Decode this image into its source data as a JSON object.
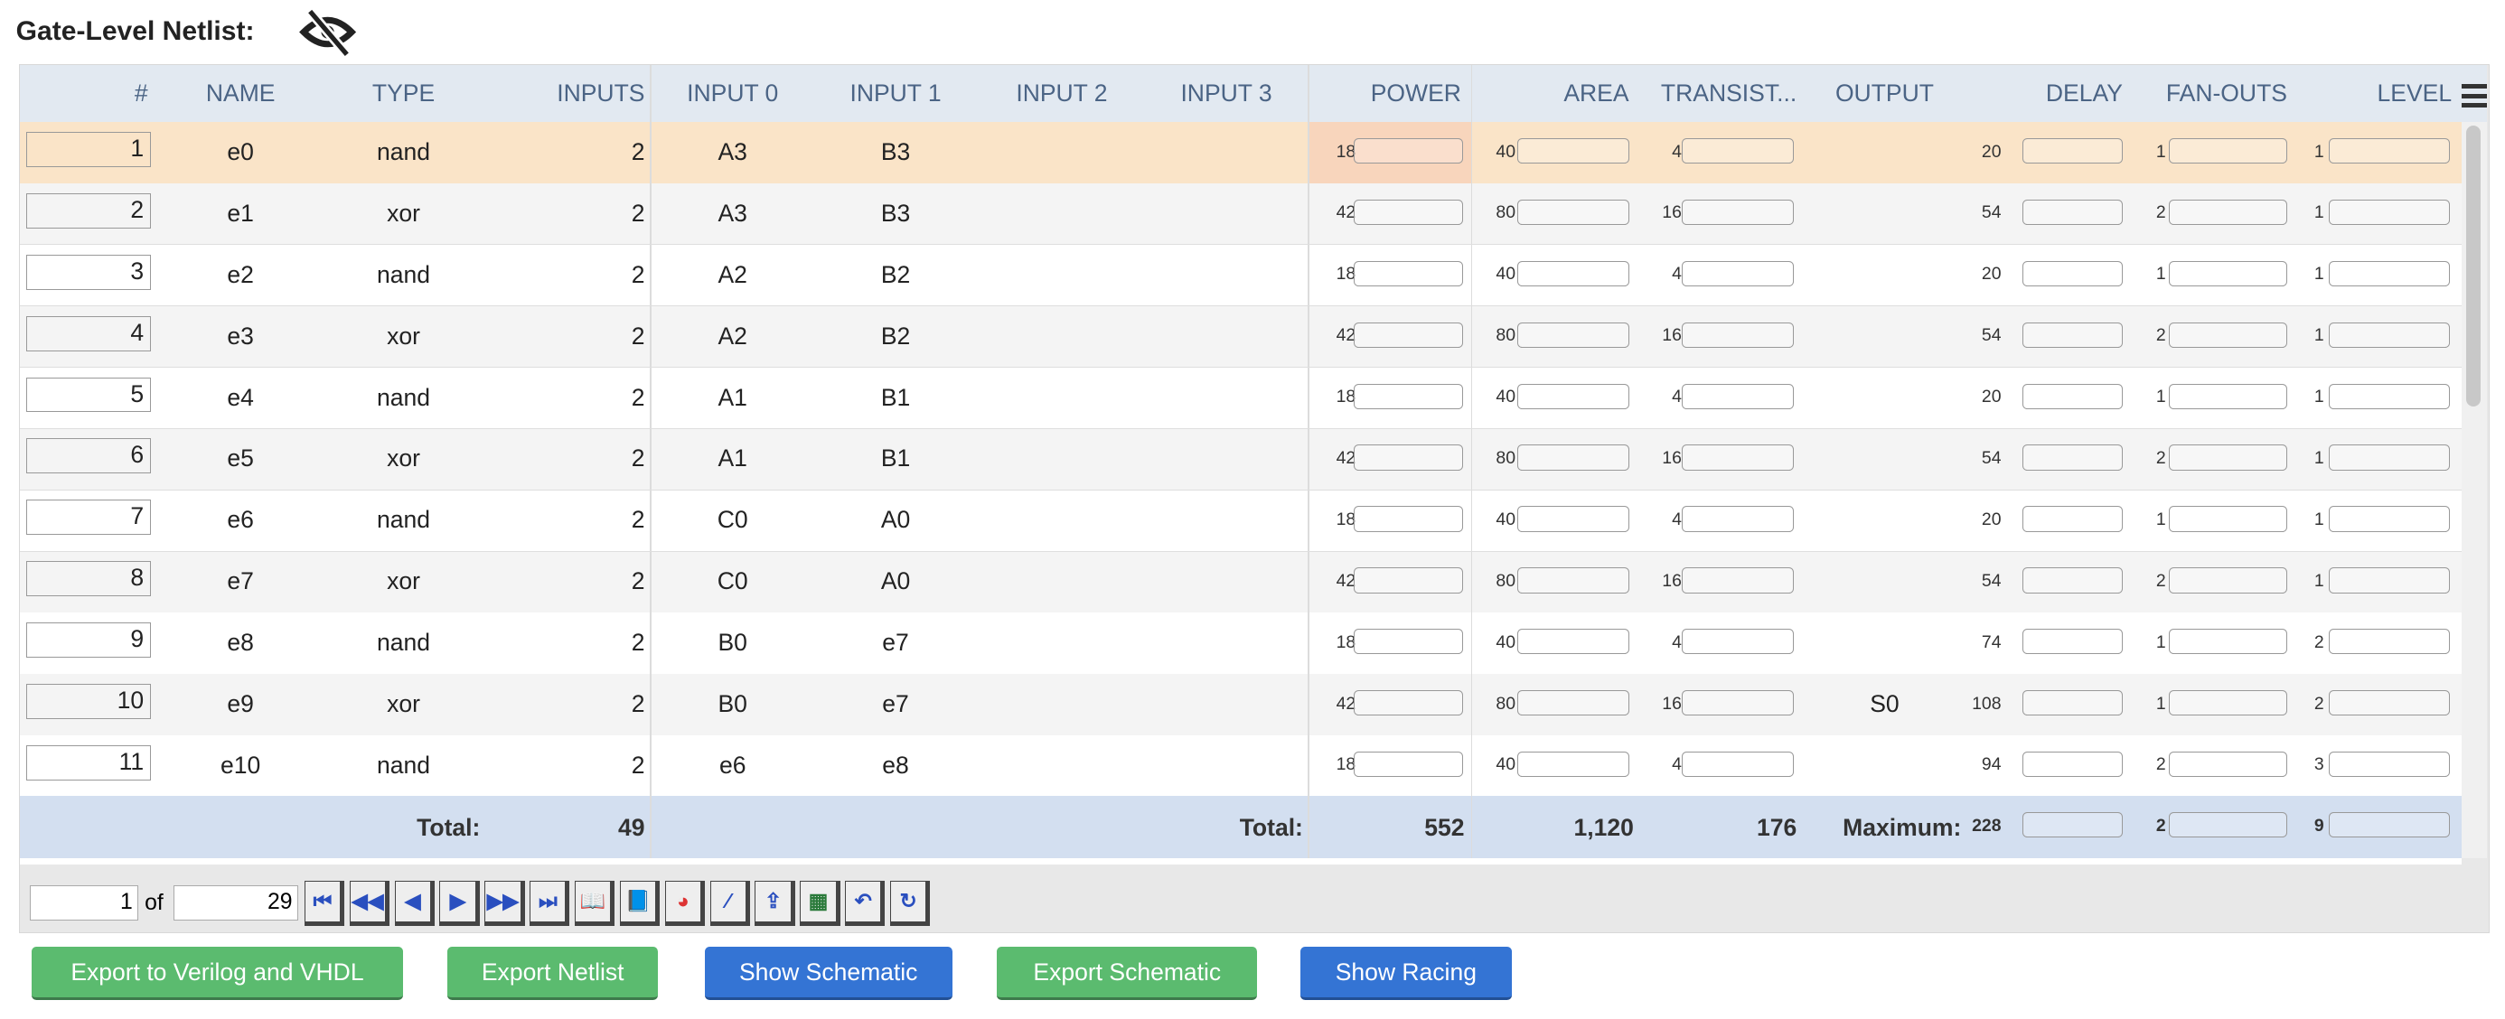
{
  "title": "Gate-Level Netlist:",
  "colors": {
    "power": "#e14bc3",
    "area": "#fbe05a",
    "transistors": "#a07e56",
    "delay": "#e99a40",
    "fanouts": "#6ce3dc",
    "level": "#c92b6e",
    "selected_row": "#fae4c8",
    "footer": "#d3dff0",
    "header": "#e2e9f1"
  },
  "columns": [
    "#",
    "NAME",
    "TYPE",
    "INPUTS",
    "INPUT 0",
    "INPUT 1",
    "INPUT 2",
    "INPUT 3",
    "POWER",
    "AREA",
    "TRANSIST...",
    "OUTPUT",
    "DELAY",
    "FAN-OUTS",
    "LEVEL"
  ],
  "bar_max": {
    "power": 42,
    "area": 80,
    "transistors": 16,
    "delay": 228,
    "fanouts": 2,
    "level": 9
  },
  "rows": [
    {
      "idx": "1",
      "name": "e0",
      "type": "nand",
      "inputs": "2",
      "in0": "A3",
      "in1": "B3",
      "in2": "",
      "in3": "",
      "power": 18,
      "area": 40,
      "transistors": 4,
      "output": "",
      "delay": 20,
      "fanouts": 1,
      "level": 1,
      "selected": true
    },
    {
      "idx": "2",
      "name": "e1",
      "type": "xor",
      "inputs": "2",
      "in0": "A3",
      "in1": "B3",
      "in2": "",
      "in3": "",
      "power": 42,
      "area": 80,
      "transistors": 16,
      "output": "",
      "delay": 54,
      "fanouts": 2,
      "level": 1
    },
    {
      "idx": "3",
      "name": "e2",
      "type": "nand",
      "inputs": "2",
      "in0": "A2",
      "in1": "B2",
      "in2": "",
      "in3": "",
      "power": 18,
      "area": 40,
      "transistors": 4,
      "output": "",
      "delay": 20,
      "fanouts": 1,
      "level": 1
    },
    {
      "idx": "4",
      "name": "e3",
      "type": "xor",
      "inputs": "2",
      "in0": "A2",
      "in1": "B2",
      "in2": "",
      "in3": "",
      "power": 42,
      "area": 80,
      "transistors": 16,
      "output": "",
      "delay": 54,
      "fanouts": 2,
      "level": 1
    },
    {
      "idx": "5",
      "name": "e4",
      "type": "nand",
      "inputs": "2",
      "in0": "A1",
      "in1": "B1",
      "in2": "",
      "in3": "",
      "power": 18,
      "area": 40,
      "transistors": 4,
      "output": "",
      "delay": 20,
      "fanouts": 1,
      "level": 1
    },
    {
      "idx": "6",
      "name": "e5",
      "type": "xor",
      "inputs": "2",
      "in0": "A1",
      "in1": "B1",
      "in2": "",
      "in3": "",
      "power": 42,
      "area": 80,
      "transistors": 16,
      "output": "",
      "delay": 54,
      "fanouts": 2,
      "level": 1
    },
    {
      "idx": "7",
      "name": "e6",
      "type": "nand",
      "inputs": "2",
      "in0": "C0",
      "in1": "A0",
      "in2": "",
      "in3": "",
      "power": 18,
      "area": 40,
      "transistors": 4,
      "output": "",
      "delay": 20,
      "fanouts": 1,
      "level": 1
    },
    {
      "idx": "8",
      "name": "e7",
      "type": "xor",
      "inputs": "2",
      "in0": "C0",
      "in1": "A0",
      "in2": "",
      "in3": "",
      "power": 42,
      "area": 80,
      "transistors": 16,
      "output": "",
      "delay": 54,
      "fanouts": 2,
      "level": 1
    },
    {
      "idx": "9",
      "name": "e8",
      "type": "nand",
      "inputs": "2",
      "in0": "B0",
      "in1": "e7",
      "in2": "",
      "in3": "",
      "power": 18,
      "area": 40,
      "transistors": 4,
      "output": "",
      "delay": 74,
      "fanouts": 1,
      "level": 2
    },
    {
      "idx": "10",
      "name": "e9",
      "type": "xor",
      "inputs": "2",
      "in0": "B0",
      "in1": "e7",
      "in2": "",
      "in3": "",
      "power": 42,
      "area": 80,
      "transistors": 16,
      "output": "S0",
      "delay": 108,
      "fanouts": 1,
      "level": 2
    },
    {
      "idx": "11",
      "name": "e10",
      "type": "nand",
      "inputs": "2",
      "in0": "e6",
      "in1": "e8",
      "in2": "",
      "in3": "",
      "power": 18,
      "area": 40,
      "transistors": 4,
      "output": "",
      "delay": 94,
      "fanouts": 2,
      "level": 3
    }
  ],
  "footer": {
    "total_label": "Total:",
    "inputs_total": "49",
    "total_label2": "Total:",
    "power_total": "552",
    "area_total": "1,120",
    "transistors_total": "176",
    "max_label": "Maximum:",
    "delay_max": 228,
    "fanouts_max": 2,
    "level_max": 9
  },
  "pager": {
    "page": "1",
    "of": "of",
    "pages": "29",
    "buttons": [
      "first-page",
      "previous-group",
      "previous-page",
      "next-page",
      "next-group",
      "last-page",
      "book-open",
      "book-view",
      "pie-chart",
      "magic-wand",
      "export",
      "excel",
      "undo",
      "reset"
    ]
  },
  "buttons": [
    "Export to Verilog and VHDL",
    "Export Netlist",
    "Show Schematic",
    "Export Schematic",
    "Show Racing"
  ]
}
